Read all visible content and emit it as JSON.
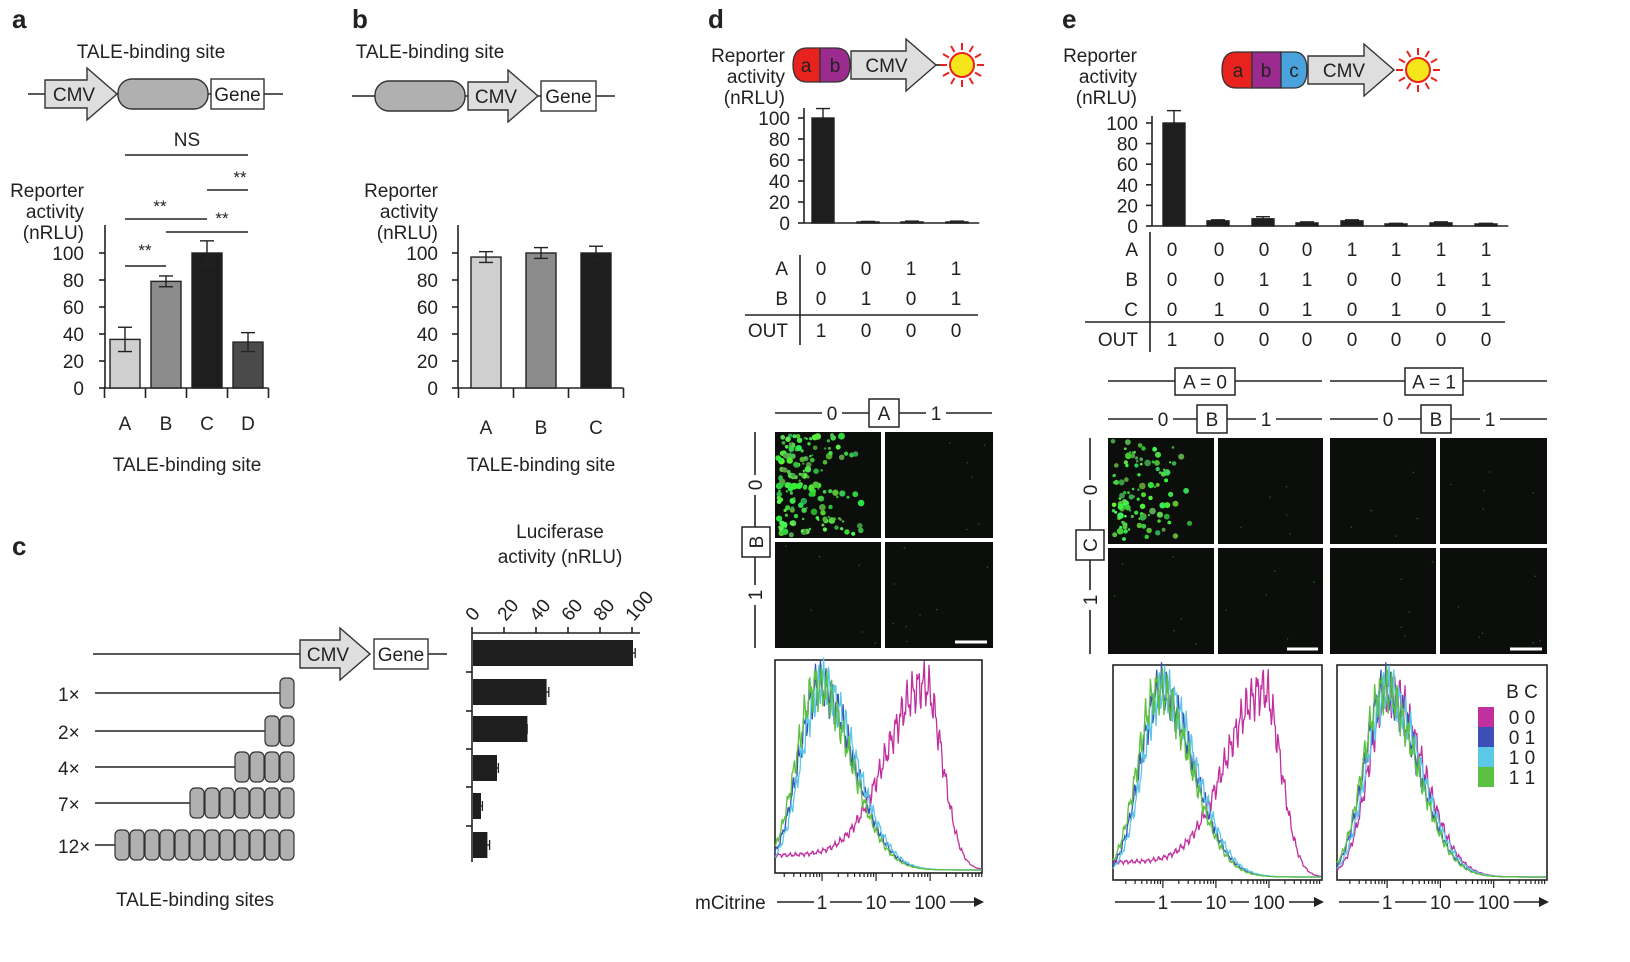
{
  "panel_labels": [
    "a",
    "b",
    "c",
    "d",
    "e"
  ],
  "schematic": {
    "tale_site": "TALE-binding site",
    "cmv": "CMV",
    "gene": "Gene",
    "parts_d": [
      "a",
      "b"
    ],
    "parts_e": [
      "a",
      "b",
      "c"
    ],
    "colors": {
      "a": "#e8231f",
      "b": "#9b2b8f",
      "c": "#4aa3dc",
      "sun": "#f5e61c",
      "sun_rays": "#e8231f"
    }
  },
  "panel_c": {
    "copies": [
      "1×",
      "2×",
      "4×",
      "7×",
      "12×"
    ],
    "copy_counts": [
      1,
      2,
      4,
      7,
      12
    ],
    "xlabel": "TALE-binding sites"
  },
  "microscopy": {
    "d": {
      "top_gate": "A",
      "side_gate": "B",
      "state0": "0",
      "state1": "1"
    },
    "e": {
      "headers": [
        "A = 0",
        "A = 1"
      ],
      "top_gate": "B",
      "side_gate": "C",
      "state0": "0",
      "state1": "1"
    }
  },
  "legend_e": {
    "header": "B C",
    "entries": [
      "0 0",
      "0 1",
      "1 0",
      "1 1"
    ],
    "colors": [
      "#c0309f",
      "#3b4fb5",
      "#5bc8e8",
      "#5cc040"
    ]
  },
  "chart_data": [
    {
      "panel": "a",
      "type": "bar",
      "categories": [
        "A",
        "B",
        "C",
        "D"
      ],
      "values": [
        36,
        79,
        100,
        34
      ],
      "errors": [
        9,
        4,
        9,
        7
      ],
      "colors": [
        "#cfcfcf",
        "#8c8c8c",
        "#1e1e1e",
        "#4a4a4a"
      ],
      "ylabel": [
        "Reporter",
        "activity",
        "(nRLU)"
      ],
      "xlabel": "TALE-binding site",
      "ylim": [
        0,
        100
      ],
      "yticks": [
        "0",
        "20",
        "40",
        "60",
        "80",
        "100"
      ],
      "significance": [
        {
          "from": "A",
          "to": "D",
          "label": "NS"
        },
        {
          "from": "A",
          "to": "B",
          "label": "**"
        },
        {
          "from": "A",
          "to": "C",
          "label": "**"
        },
        {
          "from": "B",
          "to": "D",
          "label": "**"
        },
        {
          "from": "C",
          "to": "D",
          "label": "**"
        }
      ]
    },
    {
      "panel": "b",
      "type": "bar",
      "categories": [
        "A",
        "B",
        "C"
      ],
      "values": [
        97,
        100,
        100
      ],
      "errors": [
        4,
        4,
        5
      ],
      "colors": [
        "#cfcfcf",
        "#8c8c8c",
        "#1e1e1e"
      ],
      "ylabel": [
        "Reporter",
        "activity",
        "(nRLU)"
      ],
      "xlabel": "TALE-binding site",
      "ylim": [
        0,
        100
      ],
      "yticks": [
        "0",
        "20",
        "40",
        "60",
        "80",
        "100"
      ]
    },
    {
      "panel": "c",
      "type": "bar",
      "orientation": "horizontal",
      "categories": [
        "0×",
        "1×",
        "2×",
        "4×",
        "7×",
        "12×"
      ],
      "values": [
        100,
        46,
        34,
        15,
        5,
        9
      ],
      "errors": [
        2,
        2,
        0.5,
        1.5,
        1.5,
        2
      ],
      "title": [
        "Luciferase",
        "activity (nRLU)"
      ],
      "xlim": [
        0,
        100
      ],
      "xticks": [
        "0",
        "20",
        "40",
        "60",
        "80",
        "100"
      ]
    },
    {
      "panel": "d",
      "type": "bar",
      "values": [
        100,
        1,
        1,
        1
      ],
      "errors": [
        9,
        0.5,
        0.8,
        0.8
      ],
      "ylabel": [
        "Reporter",
        "activity",
        "(nRLU)"
      ],
      "ylim": [
        0,
        100
      ],
      "yticks": [
        "0",
        "20",
        "40",
        "60",
        "80",
        "100"
      ],
      "truth_table": {
        "inputs": [
          {
            "name": "A",
            "values": [
              "0",
              "0",
              "1",
              "1"
            ]
          },
          {
            "name": "B",
            "values": [
              "0",
              "1",
              "0",
              "1"
            ]
          }
        ],
        "output": {
          "name": "OUT",
          "values": [
            "1",
            "0",
            "0",
            "0"
          ]
        }
      }
    },
    {
      "panel": "e",
      "type": "bar",
      "values": [
        100,
        5,
        7,
        3,
        5,
        2,
        3,
        2
      ],
      "errors": [
        12,
        1,
        2,
        1,
        1,
        0.6,
        1,
        0.6
      ],
      "ylabel": [
        "Reporter",
        "activity",
        "(nRLU)"
      ],
      "ylim": [
        0,
        100
      ],
      "yticks": [
        "0",
        "20",
        "40",
        "60",
        "80",
        "100"
      ],
      "truth_table": {
        "inputs": [
          {
            "name": "A",
            "values": [
              "0",
              "0",
              "0",
              "0",
              "1",
              "1",
              "1",
              "1"
            ]
          },
          {
            "name": "B",
            "values": [
              "0",
              "0",
              "1",
              "1",
              "0",
              "0",
              "1",
              "1"
            ]
          },
          {
            "name": "C",
            "values": [
              "0",
              "1",
              "0",
              "1",
              "0",
              "1",
              "0",
              "1"
            ]
          }
        ],
        "output": {
          "name": "OUT",
          "values": [
            "1",
            "0",
            "0",
            "0",
            "0",
            "0",
            "0",
            "0"
          ]
        }
      }
    },
    {
      "panel": "d",
      "type": "line",
      "subtype": "histogram",
      "xlabel": "mCitrine",
      "xscale": "log",
      "xticks": [
        "1",
        "10",
        "100"
      ],
      "series": [
        {
          "color": "#c0309f",
          "peak": 80
        },
        {
          "color": "#3b4fb5",
          "peak": 0.9
        },
        {
          "color": "#5bc8e8",
          "peak": 1.0
        },
        {
          "color": "#5cc040",
          "peak": 0.8
        }
      ]
    },
    {
      "panel": "e",
      "condition": "A = 0",
      "type": "line",
      "subtype": "histogram",
      "xscale": "log",
      "xticks": [
        "1",
        "10",
        "100"
      ],
      "series": [
        {
          "color": "#c0309f",
          "peak": 80
        },
        {
          "color": "#3b4fb5",
          "peak": 0.9
        },
        {
          "color": "#5bc8e8",
          "peak": 1.0
        },
        {
          "color": "#5cc040",
          "peak": 0.8
        }
      ]
    },
    {
      "panel": "e",
      "condition": "A = 1",
      "type": "line",
      "subtype": "histogram",
      "xscale": "log",
      "xticks": [
        "1",
        "10",
        "100"
      ],
      "series": [
        {
          "color": "#c0309f",
          "peak": 1.1
        },
        {
          "color": "#3b4fb5",
          "peak": 0.9
        },
        {
          "color": "#5bc8e8",
          "peak": 1.0
        },
        {
          "color": "#5cc040",
          "peak": 0.85
        }
      ]
    }
  ]
}
